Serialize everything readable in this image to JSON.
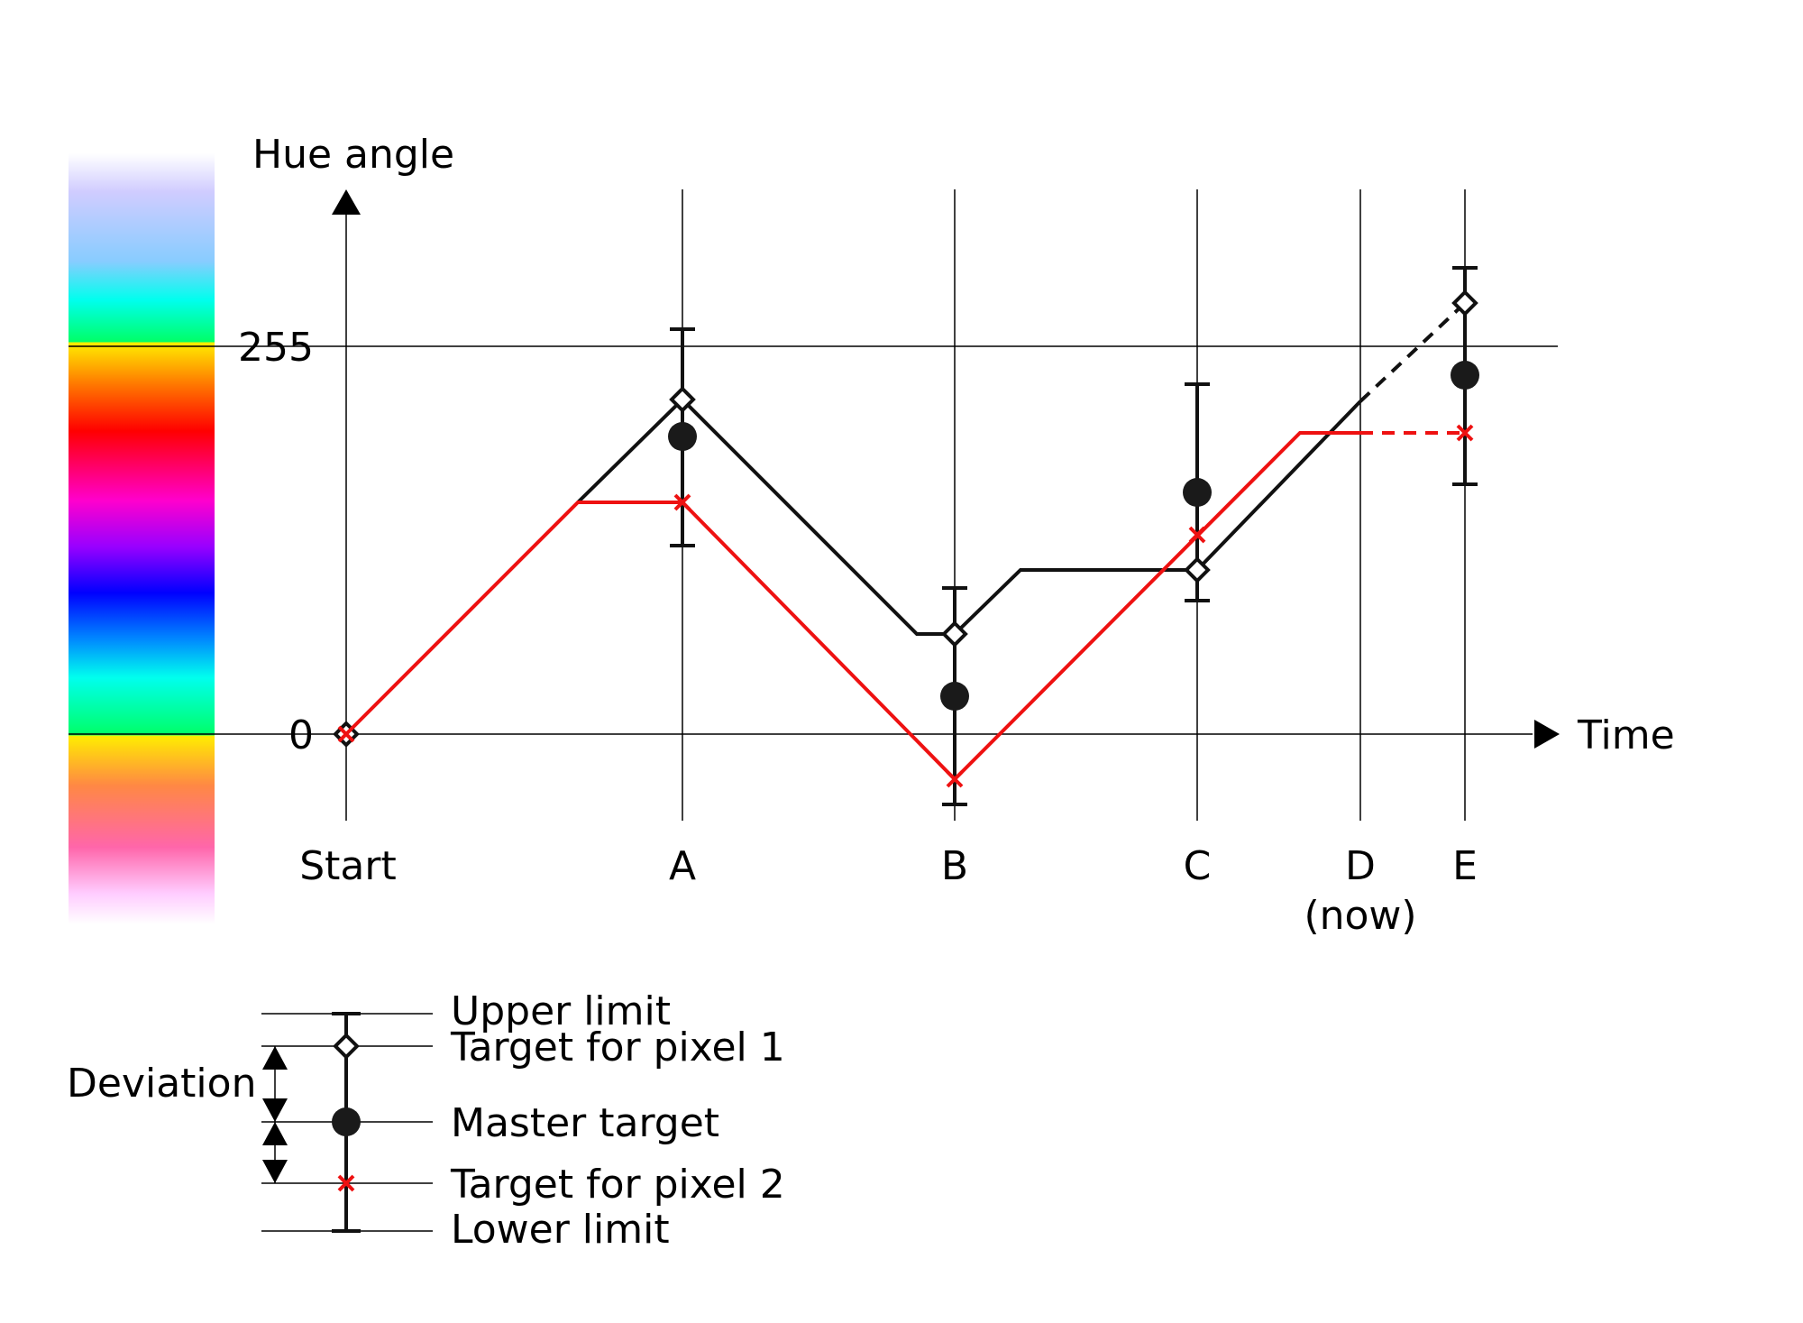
{
  "axes": {
    "y_label": "Hue angle",
    "x_label": "Time",
    "y_ticks": [
      "255",
      "0"
    ]
  },
  "time_points": [
    {
      "label": "Start",
      "sublabel": ""
    },
    {
      "label": "A",
      "sublabel": ""
    },
    {
      "label": "B",
      "sublabel": ""
    },
    {
      "label": "C",
      "sublabel": ""
    },
    {
      "label": "D",
      "sublabel": "(now)"
    },
    {
      "label": "E",
      "sublabel": ""
    }
  ],
  "legend": {
    "deviation": "Deviation",
    "upper_limit": "Upper limit",
    "target_pixel_1": "Target for pixel 1",
    "master_target": "Master target",
    "target_pixel_2": "Target for pixel 2",
    "lower_limit": "Lower limit"
  },
  "colors": {
    "pixel_2_line": "#ee1111",
    "pixel_1_line": "#111111",
    "master_marker": "#1a1a1a"
  },
  "hue_bar": {
    "stops": [
      "#ffffff",
      "#c8c8ff",
      "#8cc8ff",
      "#00ffee",
      "#00ff66",
      "#ffee00",
      "#ff8800",
      "#ff0000",
      "#ff00aa",
      "#ee00ff",
      "#8800ff",
      "#2200ff",
      "#0044ff",
      "#00ccff",
      "#00ffee",
      "#00ff66",
      "#ffee00",
      "#ff8866",
      "#ff66aa",
      "#ffccff",
      "#ffffff"
    ]
  }
}
